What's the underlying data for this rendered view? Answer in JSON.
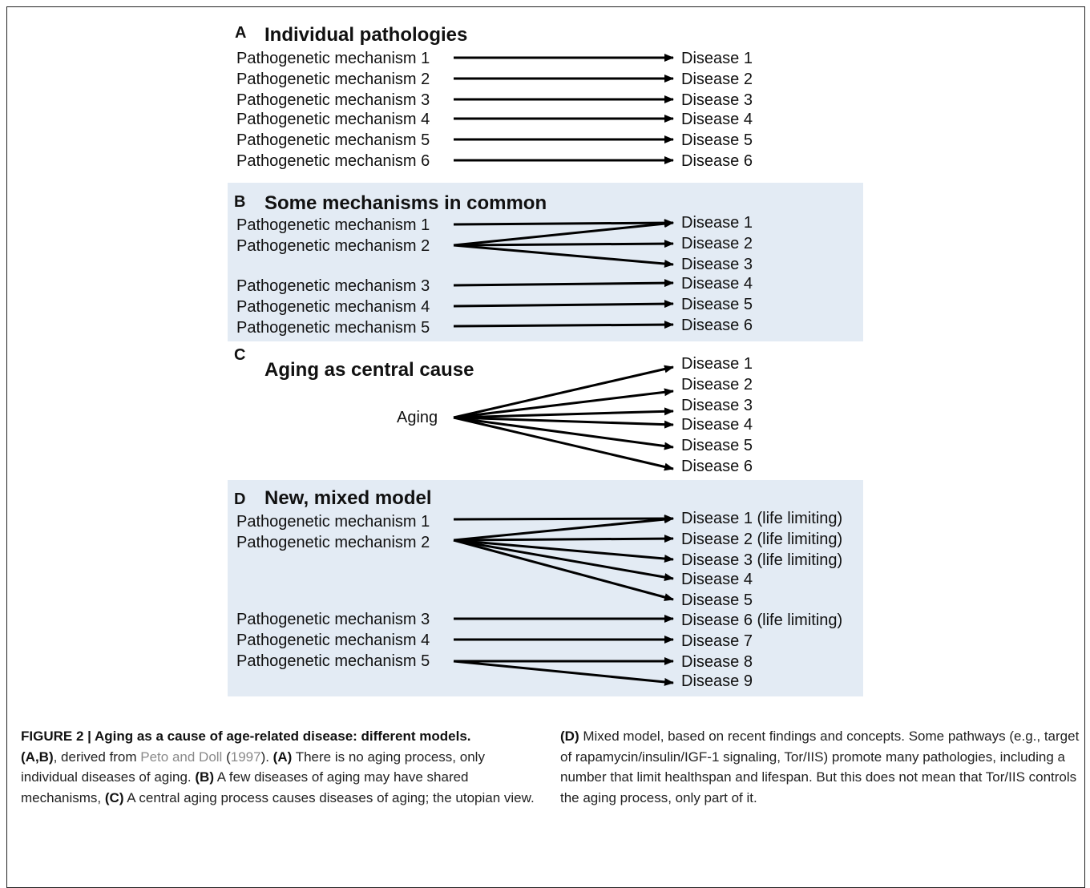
{
  "panelA": {
    "letter": "A",
    "title": "Individual pathologies",
    "left": [
      "Pathogenetic mechanism 1",
      "Pathogenetic mechanism 2",
      "Pathogenetic mechanism 3",
      "Pathogenetic mechanism 4",
      "Pathogenetic mechanism 5",
      "Pathogenetic mechanism 6"
    ],
    "right": [
      "Disease 1",
      "Disease 2",
      "Disease 3",
      "Disease 4",
      "Disease 5",
      "Disease 6"
    ],
    "edges": [
      [
        0,
        0
      ],
      [
        1,
        1
      ],
      [
        2,
        2
      ],
      [
        3,
        3
      ],
      [
        4,
        4
      ],
      [
        5,
        5
      ]
    ]
  },
  "panelB": {
    "letter": "B",
    "title": "Some mechanisms in common",
    "left": [
      "Pathogenetic mechanism 1",
      "Pathogenetic mechanism 2",
      "Pathogenetic mechanism 3",
      "Pathogenetic mechanism 4",
      "Pathogenetic mechanism 5"
    ],
    "right": [
      "Disease 1",
      "Disease 2",
      "Disease 3",
      "Disease 4",
      "Disease 5",
      "Disease 6"
    ],
    "edges": [
      [
        0,
        0
      ],
      [
        1,
        0
      ],
      [
        1,
        1
      ],
      [
        1,
        2
      ],
      [
        2,
        3
      ],
      [
        3,
        4
      ],
      [
        4,
        5
      ]
    ]
  },
  "panelC": {
    "letter": "C",
    "title": "Aging as central cause",
    "left": [
      "Aging"
    ],
    "right": [
      "Disease 1",
      "Disease 2",
      "Disease 3",
      "Disease 4",
      "Disease 5",
      "Disease 6"
    ],
    "edges": [
      [
        0,
        0
      ],
      [
        0,
        1
      ],
      [
        0,
        2
      ],
      [
        0,
        3
      ],
      [
        0,
        4
      ],
      [
        0,
        5
      ]
    ]
  },
  "panelD": {
    "letter": "D",
    "title": "New, mixed model",
    "left": [
      "Pathogenetic mechanism 1",
      "Pathogenetic mechanism 2",
      "Pathogenetic mechanism 3",
      "Pathogenetic mechanism 4",
      "Pathogenetic mechanism 5"
    ],
    "right": [
      "Disease 1 (life limiting)",
      "Disease 2 (life limiting)",
      "Disease 3 (life limiting)",
      "Disease 4",
      "Disease 5",
      "Disease 6 (life limiting)",
      "Disease 7",
      "Disease 8",
      "Disease 9"
    ],
    "edges": [
      [
        0,
        0
      ],
      [
        1,
        0
      ],
      [
        1,
        1
      ],
      [
        1,
        2
      ],
      [
        1,
        3
      ],
      [
        1,
        4
      ],
      [
        2,
        5
      ],
      [
        3,
        6
      ],
      [
        4,
        7
      ],
      [
        4,
        8
      ]
    ]
  },
  "caption": {
    "figure_label": "FIGURE 2 | Aging as a cause of age-related disease: different models.",
    "ab_label": "(A,B)",
    "t1": ", derived from ",
    "ref_authors": "Peto and Doll",
    "ref_open": " (",
    "ref_year": "1997",
    "ref_close": "). ",
    "a_label": "(A)",
    "a_text": " There is no aging process, only individual diseases of aging. ",
    "b_label": "(B)",
    "b_text": " A few diseases of aging may have shared mechanisms, ",
    "c_label": "(C)",
    "c_text": " A central aging process causes diseases of aging; the utopian view. ",
    "d_label": "(D)",
    "d_text": " Mixed model, based on recent findings and concepts. Some pathways (e.g., target of rapamycin/insulin/IGF-1 signaling, Tor/IIS) promote many pathologies, including a number that limit healthspan and lifespan. But this does not mean that Tor/IIS controls the aging process, only part of it."
  }
}
